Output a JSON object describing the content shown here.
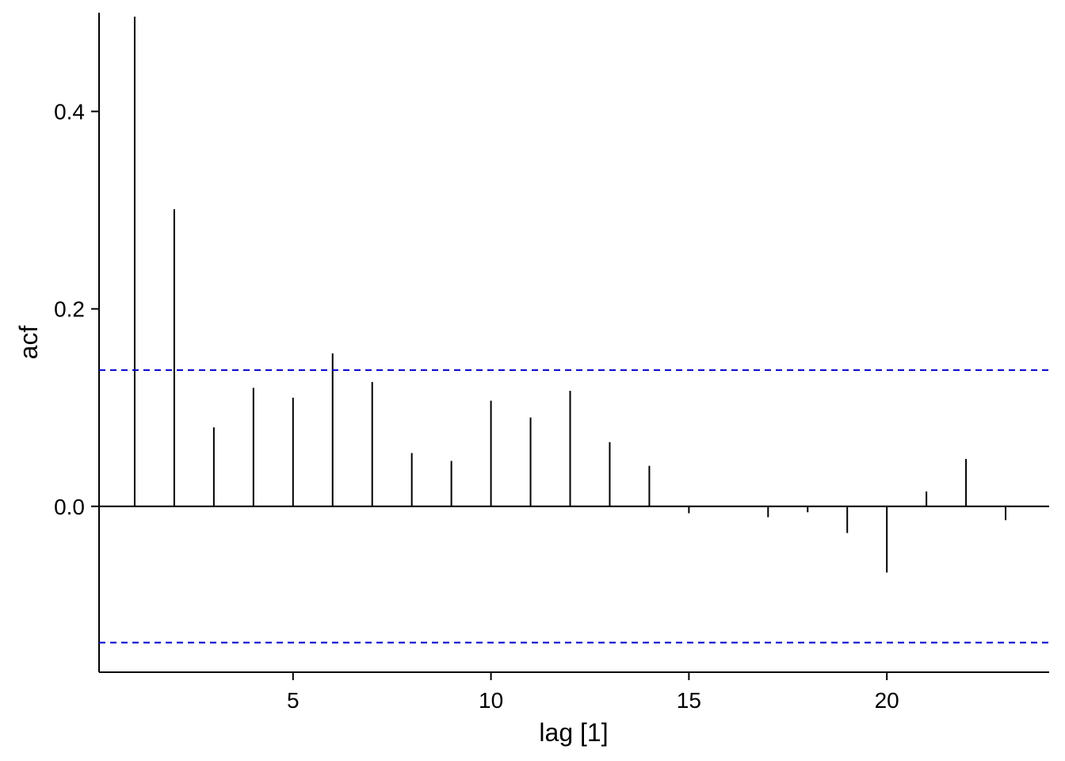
{
  "chart_data": {
    "type": "bar",
    "xlabel": "lag [1]",
    "ylabel": "acf",
    "xlim": [
      0.1,
      24.1
    ],
    "ylim": [
      -0.168,
      0.5
    ],
    "x_ticks": [
      {
        "value": 5,
        "label": "5"
      },
      {
        "value": 10,
        "label": "10"
      },
      {
        "value": 15,
        "label": "15"
      },
      {
        "value": 20,
        "label": "20"
      }
    ],
    "y_ticks": [
      {
        "value": 0.0,
        "label": "0.0"
      },
      {
        "value": 0.2,
        "label": "0.2"
      },
      {
        "value": 0.4,
        "label": "0.4"
      }
    ],
    "lags": [
      1,
      2,
      3,
      4,
      5,
      6,
      7,
      8,
      9,
      10,
      11,
      12,
      13,
      14,
      15,
      16,
      17,
      18,
      19,
      20,
      21,
      22,
      23
    ],
    "values": [
      0.496,
      0.301,
      0.08,
      0.12,
      0.11,
      0.155,
      0.126,
      0.054,
      0.046,
      0.107,
      0.09,
      0.117,
      0.065,
      0.041,
      -0.007,
      0.0,
      -0.011,
      -0.006,
      -0.027,
      -0.067,
      0.015,
      0.048,
      -0.014
    ],
    "confidence_bounds": [
      0.138,
      -0.138
    ],
    "zero_line": 0,
    "colors": {
      "spikes": "#000000",
      "confidence": "#0000CC",
      "axes": "#000000"
    },
    "grid": false,
    "legend": "none"
  }
}
